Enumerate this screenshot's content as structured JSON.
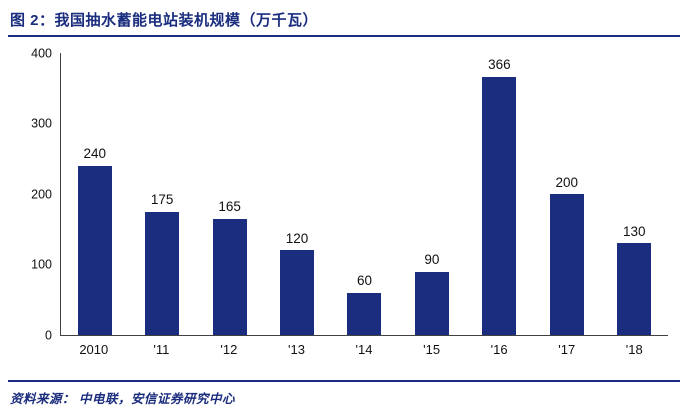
{
  "header": {
    "title": "图 2：我国抽水蓄能电站装机规模（万千瓦）"
  },
  "footer": {
    "source": "资料来源： 中电联，安信证券研究中心"
  },
  "colors": {
    "accent": "#1b2d7e",
    "bar": "#1b2d7e",
    "axis": "#404040"
  },
  "chart_data": {
    "type": "bar",
    "title": "我国抽水蓄能电站装机规模（万千瓦）",
    "categories": [
      "2010",
      "'11",
      "'12",
      "'13",
      "'14",
      "'15",
      "'16",
      "'17",
      "'18"
    ],
    "values": [
      240,
      175,
      165,
      120,
      60,
      90,
      366,
      200,
      130
    ],
    "xlabel": "",
    "ylabel": "",
    "ylim": [
      0,
      400
    ],
    "yticks": [
      0,
      100,
      200,
      300,
      400
    ],
    "grid": false,
    "legend": false,
    "bar_color": "#1b2d7e",
    "data_labels": true
  }
}
